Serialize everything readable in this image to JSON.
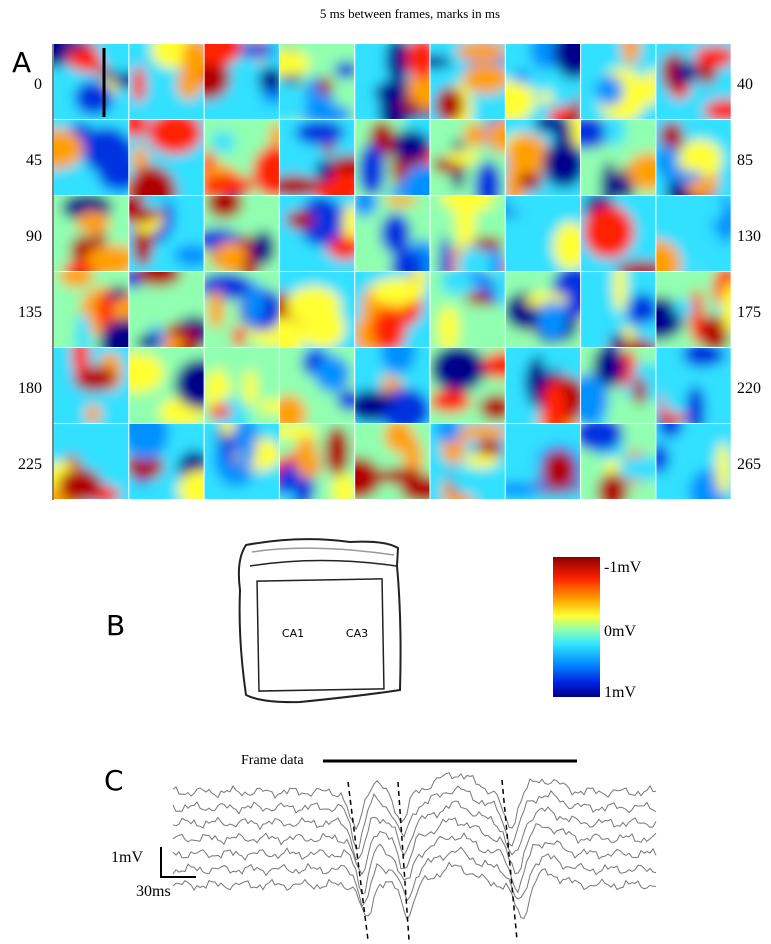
{
  "title": "5 ms between frames, marks in ms",
  "panel_a": {
    "label": "A",
    "row_start_labels": [
      0,
      45,
      90,
      135,
      180,
      225
    ],
    "row_end_labels": [
      40,
      85,
      130,
      175,
      220,
      265
    ]
  },
  "panel_b": {
    "label": "B",
    "regions": [
      "CA1",
      "CA3"
    ],
    "colorbar_labels": [
      "-1mV",
      "0mV",
      "1mV"
    ]
  },
  "panel_c": {
    "label": "C",
    "bar_label": "Frame data",
    "scale_y": "1mV",
    "scale_x": "30ms"
  }
}
